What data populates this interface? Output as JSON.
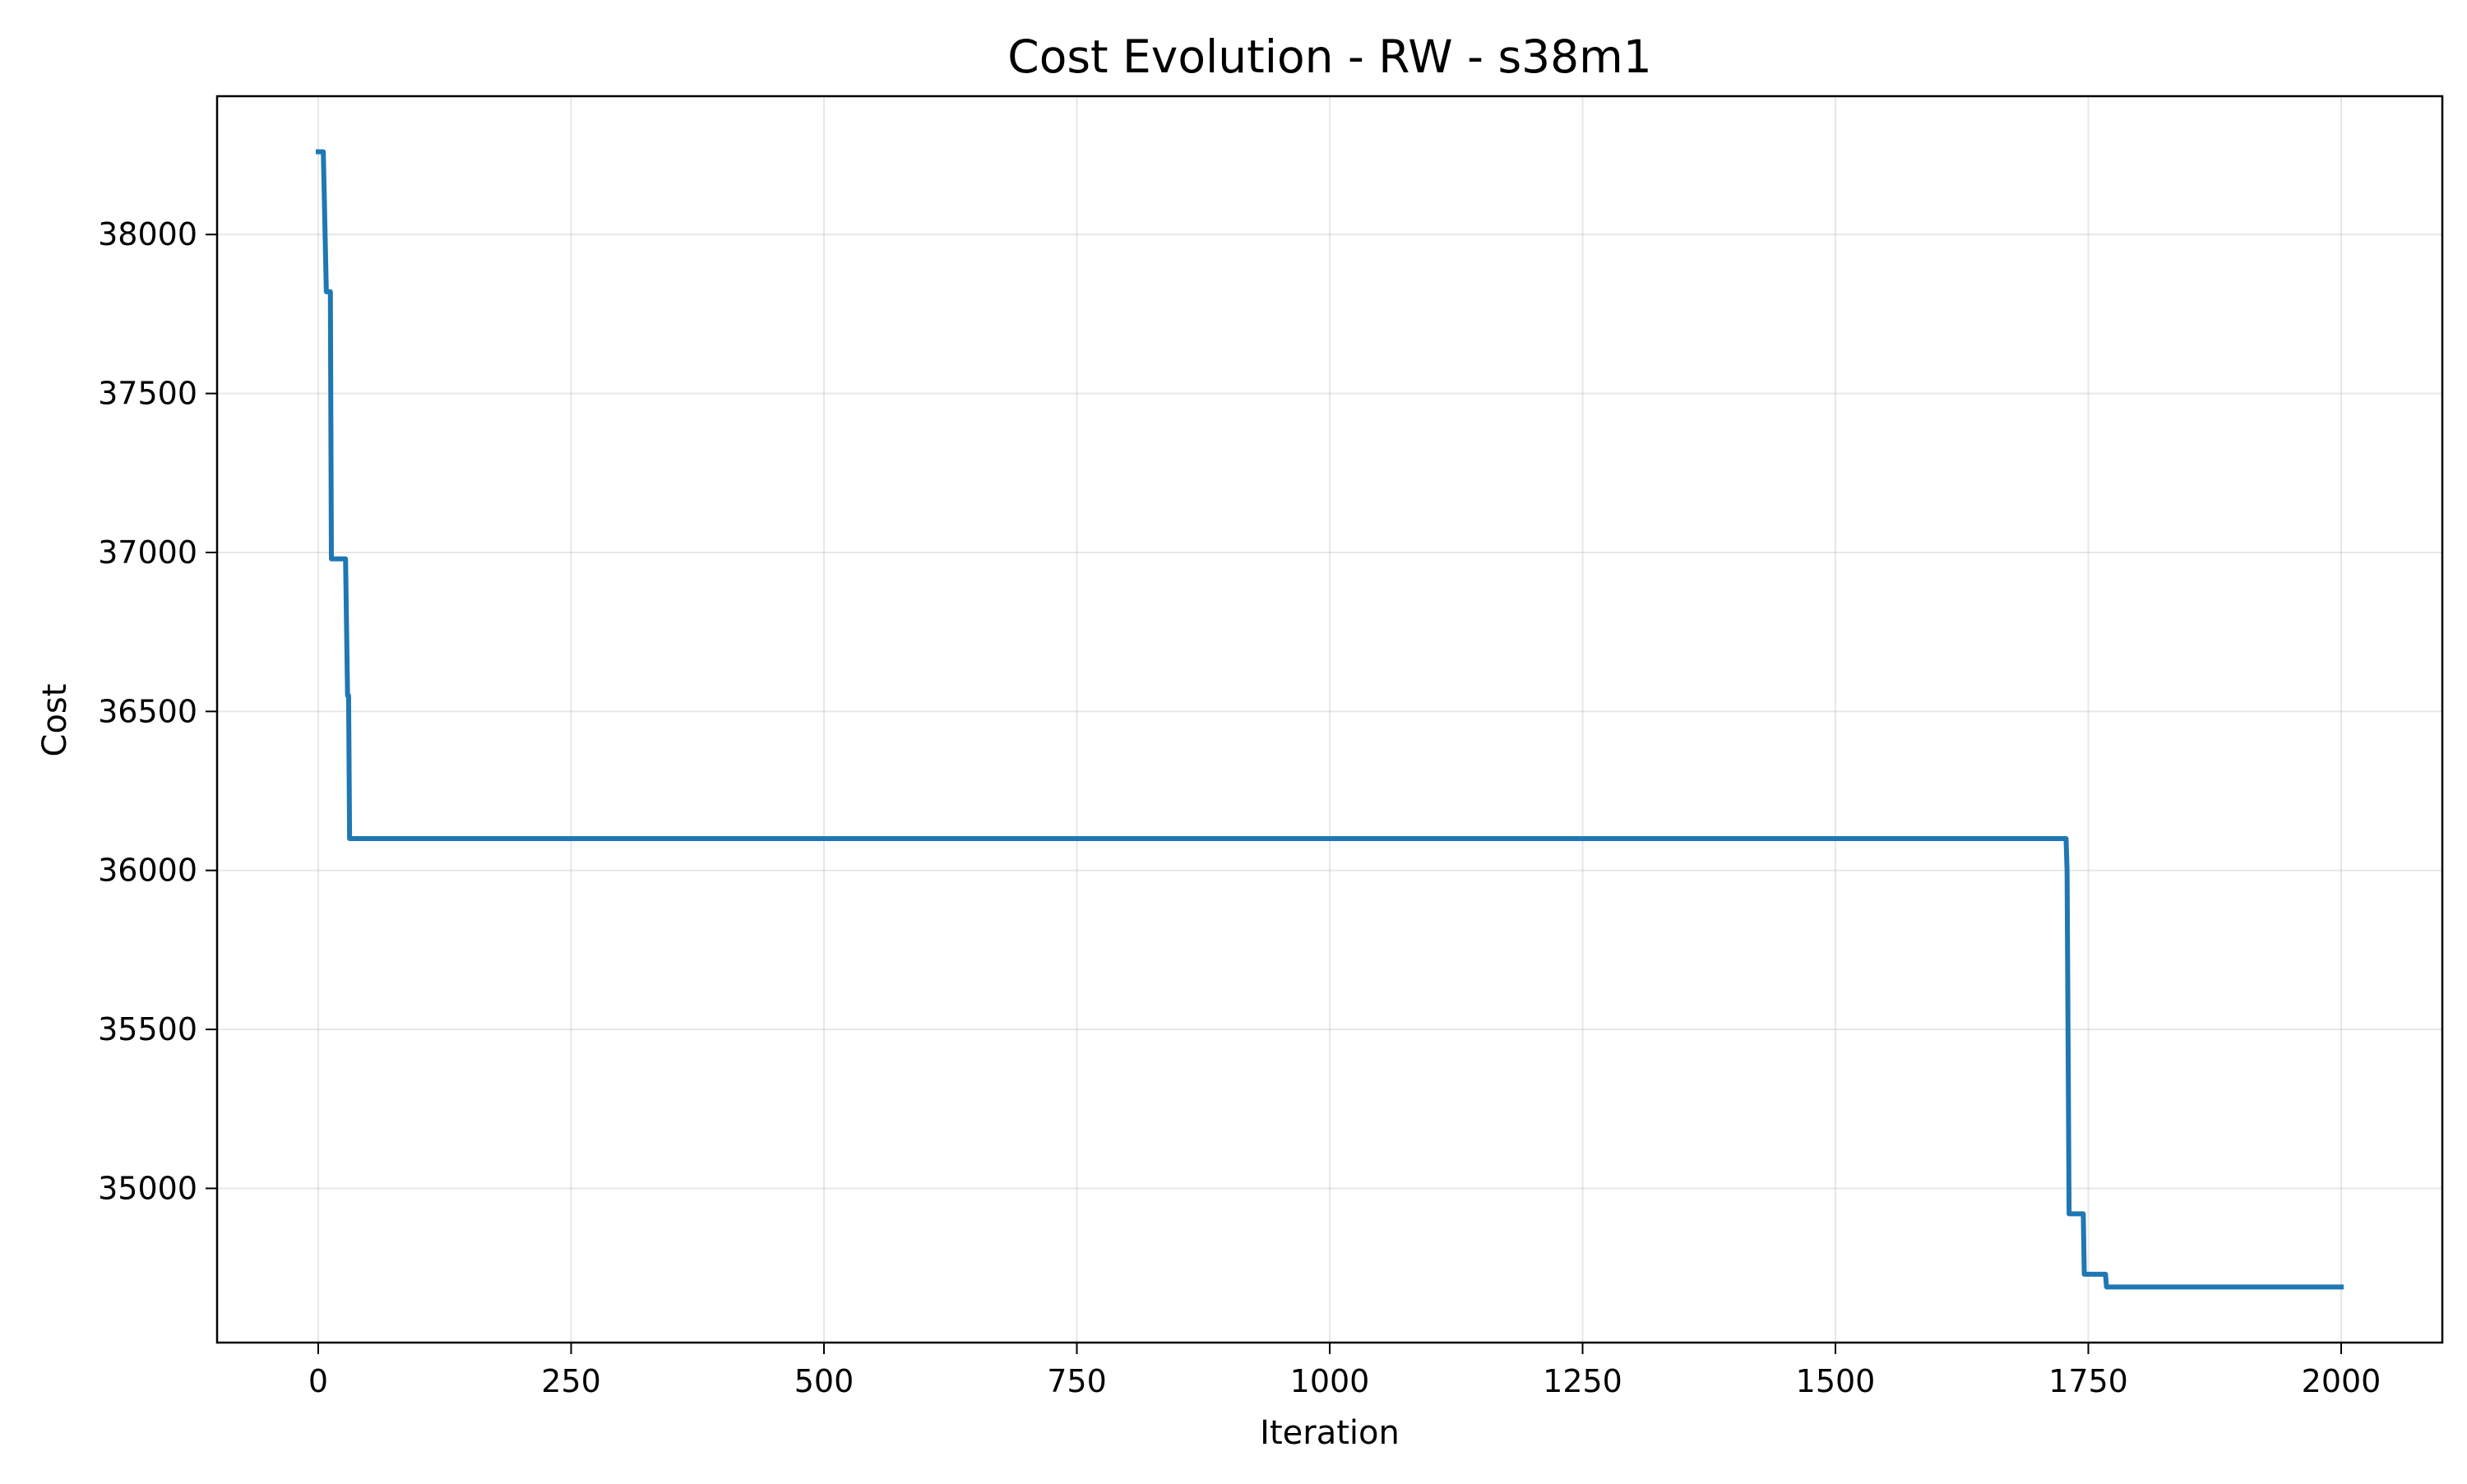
{
  "chart_data": {
    "type": "line",
    "title": "Cost Evolution - RW - s38m1",
    "xlabel": "Iteration",
    "ylabel": "Cost",
    "xlim": [
      -100,
      2100
    ],
    "ylim": [
      34515,
      38435
    ],
    "xticks": [
      0,
      250,
      500,
      750,
      1000,
      1250,
      1500,
      1750,
      2000
    ],
    "yticks": [
      35000,
      35500,
      36000,
      36500,
      37000,
      37500,
      38000
    ],
    "grid": true,
    "line_color": "#1f77b4",
    "series": [
      {
        "x": [
          0,
          5,
          8,
          12,
          13,
          27,
          29,
          30,
          31,
          33,
          1728,
          1729,
          1731,
          1732,
          1745,
          1746,
          1767,
          1768,
          2000
        ],
        "y": [
          38260,
          38260,
          37820,
          37820,
          36980,
          36980,
          36550,
          36550,
          36100,
          36100,
          36100,
          36000,
          34920,
          34920,
          34920,
          34730,
          34730,
          34690,
          34690
        ]
      }
    ]
  }
}
